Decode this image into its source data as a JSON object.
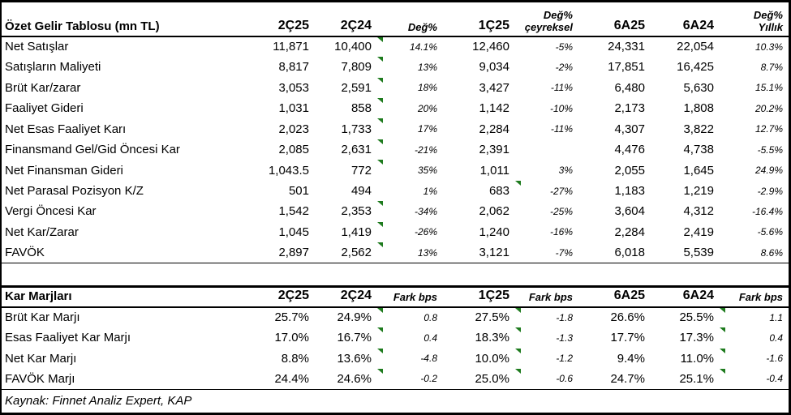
{
  "flag_color": "#1E7B1E",
  "source_note": "Kaynak: Finnet Analiz Expert, KAP",
  "income_statement": {
    "title": "Özet Gelir Tablosu (mn TL)",
    "column_headers": [
      "2Ç25",
      "2Ç24",
      "Değ%",
      "1Ç25",
      "Değ%\nçeyreksel",
      "6A25",
      "6A24",
      "Değ%\nYıllık"
    ],
    "rows": [
      {
        "label": "Net Satışlar",
        "values": [
          "11,871",
          "10,400",
          "14.1%",
          "12,460",
          "-5%",
          "24,331",
          "22,054",
          "10.3%"
        ],
        "flags": [
          2
        ]
      },
      {
        "label": "Satışların Maliyeti",
        "values": [
          "8,817",
          "7,809",
          "13%",
          "9,034",
          "-2%",
          "17,851",
          "16,425",
          "8.7%"
        ],
        "flags": [
          2
        ]
      },
      {
        "label": "Brüt Kar/zarar",
        "values": [
          "3,053",
          "2,591",
          "18%",
          "3,427",
          "-11%",
          "6,480",
          "5,630",
          "15.1%"
        ],
        "flags": [
          2
        ]
      },
      {
        "label": "Faaliyet Gideri",
        "values": [
          "1,031",
          "858",
          "20%",
          "1,142",
          "-10%",
          "2,173",
          "1,808",
          "20.2%"
        ],
        "flags": [
          2
        ]
      },
      {
        "label": "Net Esas Faaliyet Karı",
        "values": [
          "2,023",
          "1,733",
          "17%",
          "2,284",
          "-11%",
          "4,307",
          "3,822",
          "12.7%"
        ],
        "flags": [
          2
        ]
      },
      {
        "label": "Finansmand Gel/Gid Öncesi Kar",
        "values": [
          "2,085",
          "2,631",
          "-21%",
          "2,391",
          "",
          "4,476",
          "4,738",
          "-5.5%"
        ],
        "flags": [
          2
        ]
      },
      {
        "label": "Net Finansman Gideri",
        "values": [
          "1,043.5",
          "772",
          "35%",
          "1,011",
          "3%",
          "2,055",
          "1,645",
          "24.9%"
        ],
        "flags": [
          2
        ]
      },
      {
        "label": "Net Parasal Pozisyon K/Z",
        "values": [
          "501",
          "494",
          "1%",
          "683",
          "-27%",
          "1,183",
          "1,219",
          "-2.9%"
        ],
        "flags": [
          4
        ]
      },
      {
        "label": "Vergi Öncesi Kar",
        "values": [
          "1,542",
          "2,353",
          "-34%",
          "2,062",
          "-25%",
          "3,604",
          "4,312",
          "-16.4%"
        ],
        "flags": [
          2
        ]
      },
      {
        "label": "Net Kar/Zarar",
        "values": [
          "1,045",
          "1,419",
          "-26%",
          "1,240",
          "-16%",
          "2,284",
          "2,419",
          "-5.6%"
        ],
        "flags": [
          2
        ]
      },
      {
        "label": "FAVÖK",
        "values": [
          "2,897",
          "2,562",
          "13%",
          "3,121",
          "-7%",
          "6,018",
          "5,539",
          "8.6%"
        ],
        "flags": [
          2
        ]
      }
    ]
  },
  "margins": {
    "title": "Kar Marjları",
    "column_headers": [
      "2Ç25",
      "2Ç24",
      "Fark bps",
      "1Ç25",
      "Fark bps",
      "6A25",
      "6A24",
      "Fark bps"
    ],
    "rows": [
      {
        "label": "Brüt Kar Marjı",
        "values": [
          "25.7%",
          "24.9%",
          "0.8",
          "27.5%",
          "-1.8",
          "26.6%",
          "25.5%",
          "1.1"
        ],
        "flags": [
          2,
          4,
          7
        ]
      },
      {
        "label": "Esas Faaliyet Kar Marjı",
        "values": [
          "17.0%",
          "16.7%",
          "0.4",
          "18.3%",
          "-1.3",
          "17.7%",
          "17.3%",
          "0.4"
        ],
        "flags": [
          2,
          4,
          7
        ]
      },
      {
        "label": "Net Kar Marjı",
        "values": [
          "8.8%",
          "13.6%",
          "-4.8",
          "10.0%",
          "-1.2",
          "9.4%",
          "11.0%",
          "-1.6"
        ],
        "flags": [
          2,
          4,
          7
        ]
      },
      {
        "label": "FAVÖK Marjı",
        "values": [
          "24.4%",
          "24.6%",
          "-0.2",
          "25.0%",
          "-0.6",
          "24.7%",
          "25.1%",
          "-0.4"
        ],
        "flags": [
          2,
          4,
          7
        ]
      }
    ]
  }
}
